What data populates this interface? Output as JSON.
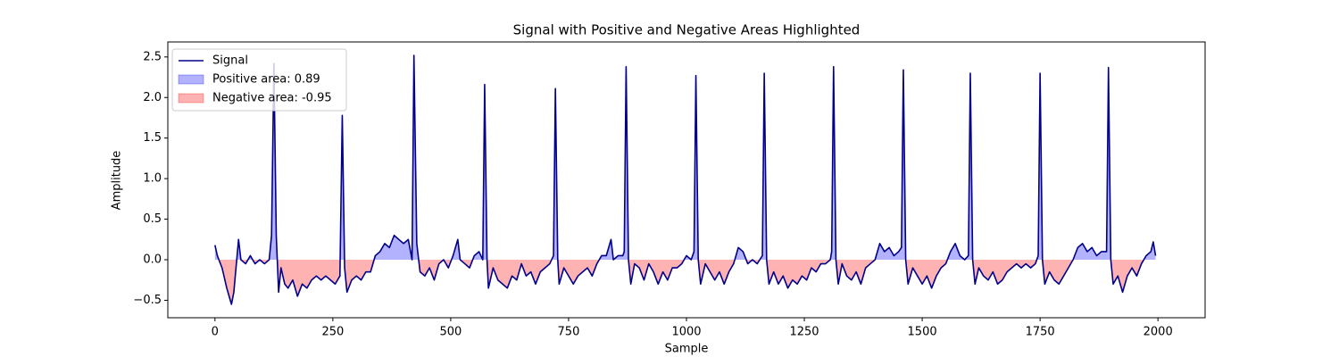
{
  "chart_data": {
    "type": "line",
    "title": "Signal with Positive and Negative Areas Highlighted",
    "x_label": "Sample",
    "y_label": "Amplitude",
    "x": [
      0,
      5,
      15,
      25,
      35,
      40,
      50,
      55,
      65,
      75,
      85,
      95,
      105,
      115,
      120,
      125,
      130,
      135,
      140,
      148,
      155,
      165,
      175,
      185,
      195,
      205,
      215,
      225,
      235,
      245,
      255,
      265,
      270,
      275,
      280,
      290,
      300,
      310,
      320,
      330,
      340,
      350,
      360,
      370,
      380,
      390,
      400,
      410,
      418,
      422,
      428,
      435,
      445,
      455,
      465,
      475,
      485,
      495,
      505,
      515,
      520,
      530,
      540,
      550,
      560,
      568,
      572,
      577,
      580,
      590,
      600,
      610,
      620,
      630,
      640,
      650,
      660,
      670,
      680,
      690,
      700,
      710,
      718,
      722,
      727,
      730,
      740,
      750,
      760,
      770,
      780,
      790,
      800,
      810,
      820,
      830,
      840,
      845,
      855,
      865,
      868,
      872,
      877,
      882,
      890,
      900,
      910,
      920,
      930,
      940,
      950,
      960,
      970,
      980,
      990,
      1000,
      1010,
      1016,
      1020,
      1025,
      1030,
      1040,
      1050,
      1060,
      1070,
      1080,
      1090,
      1100,
      1110,
      1120,
      1130,
      1140,
      1150,
      1161,
      1165,
      1170,
      1175,
      1185,
      1195,
      1205,
      1215,
      1225,
      1235,
      1245,
      1255,
      1265,
      1275,
      1285,
      1295,
      1305,
      1308,
      1312,
      1317,
      1322,
      1330,
      1340,
      1350,
      1360,
      1370,
      1380,
      1390,
      1400,
      1410,
      1420,
      1430,
      1440,
      1450,
      1456,
      1460,
      1465,
      1470,
      1480,
      1490,
      1500,
      1510,
      1520,
      1530,
      1540,
      1550,
      1560,
      1570,
      1580,
      1590,
      1598,
      1602,
      1607,
      1612,
      1620,
      1630,
      1640,
      1650,
      1660,
      1670,
      1680,
      1690,
      1700,
      1710,
      1720,
      1730,
      1740,
      1746,
      1750,
      1755,
      1760,
      1770,
      1780,
      1790,
      1800,
      1810,
      1820,
      1830,
      1840,
      1850,
      1860,
      1870,
      1880,
      1891,
      1895,
      1900,
      1905,
      1915,
      1925,
      1935,
      1945,
      1955,
      1965,
      1975,
      1985,
      1990,
      1995
    ],
    "series": [
      {
        "name": "Signal",
        "color": "#00008b",
        "values": [
          0.18,
          0.05,
          -0.1,
          -0.35,
          -0.55,
          -0.4,
          0.25,
          0.0,
          -0.05,
          0.05,
          -0.05,
          0.0,
          -0.05,
          0.0,
          0.3,
          2.42,
          0.3,
          -0.4,
          -0.1,
          -0.3,
          -0.35,
          -0.25,
          -0.45,
          -0.3,
          -0.35,
          -0.25,
          -0.2,
          -0.25,
          -0.2,
          -0.25,
          -0.3,
          -0.2,
          1.78,
          -0.1,
          -0.4,
          -0.25,
          -0.2,
          -0.25,
          -0.15,
          -0.15,
          0.05,
          0.1,
          0.2,
          0.15,
          0.3,
          0.25,
          0.2,
          0.25,
          0.0,
          2.52,
          0.2,
          -0.15,
          -0.2,
          -0.1,
          -0.25,
          -0.05,
          0.0,
          -0.1,
          0.05,
          0.25,
          0.0,
          -0.05,
          -0.1,
          0.05,
          0.1,
          0.0,
          2.16,
          0.0,
          -0.35,
          -0.1,
          -0.25,
          -0.3,
          -0.35,
          -0.2,
          -0.25,
          -0.05,
          -0.2,
          -0.15,
          -0.3,
          -0.15,
          -0.1,
          -0.05,
          0.05,
          2.11,
          0.0,
          -0.3,
          -0.1,
          -0.2,
          -0.3,
          -0.2,
          -0.15,
          -0.1,
          -0.2,
          -0.05,
          0.05,
          0.05,
          0.25,
          0.0,
          0.05,
          0.05,
          0.1,
          2.38,
          0.0,
          -0.3,
          -0.05,
          -0.1,
          -0.25,
          -0.05,
          -0.15,
          -0.3,
          -0.15,
          -0.25,
          -0.1,
          -0.1,
          -0.05,
          0.05,
          0.0,
          0.1,
          2.27,
          0.0,
          -0.3,
          -0.05,
          -0.15,
          -0.25,
          -0.15,
          -0.3,
          -0.15,
          -0.05,
          0.15,
          0.1,
          -0.05,
          0.0,
          -0.05,
          0.05,
          2.3,
          0.0,
          -0.3,
          -0.15,
          -0.3,
          -0.2,
          -0.35,
          -0.25,
          -0.3,
          -0.2,
          -0.25,
          -0.1,
          -0.15,
          -0.05,
          -0.05,
          0.0,
          0.1,
          2.38,
          0.0,
          -0.3,
          -0.05,
          -0.2,
          -0.25,
          -0.15,
          -0.3,
          -0.1,
          -0.05,
          0.0,
          0.2,
          0.1,
          0.15,
          0.05,
          0.1,
          0.15,
          2.34,
          0.0,
          -0.3,
          -0.1,
          -0.2,
          -0.3,
          -0.2,
          -0.35,
          -0.2,
          -0.1,
          -0.05,
          0.1,
          0.2,
          0.05,
          0.0,
          0.05,
          2.3,
          0.0,
          -0.3,
          -0.1,
          -0.2,
          -0.25,
          -0.15,
          -0.3,
          -0.25,
          -0.15,
          -0.1,
          -0.05,
          -0.1,
          -0.05,
          -0.1,
          -0.05,
          0.05,
          2.3,
          0.0,
          -0.3,
          -0.15,
          -0.25,
          -0.3,
          -0.2,
          -0.1,
          0.0,
          0.15,
          0.2,
          0.1,
          0.15,
          0.05,
          0.1,
          0.1,
          2.37,
          0.0,
          -0.3,
          -0.2,
          -0.4,
          -0.2,
          -0.1,
          -0.2,
          -0.05,
          0.05,
          0.1,
          0.22,
          0.05
        ]
      }
    ],
    "areas": [
      {
        "name": "Positive area: 0.89",
        "color": "#0000ff",
        "sign": "positive"
      },
      {
        "name": "Negative area: -0.95",
        "color": "#ff0000",
        "sign": "negative"
      }
    ],
    "xlim": [
      -100,
      2100
    ],
    "ylim": [
      -0.715,
      2.685
    ],
    "xticks": [
      0,
      250,
      500,
      750,
      1000,
      1250,
      1500,
      1750,
      2000
    ],
    "yticks": [
      {
        "value": -0.5,
        "label": "−0.5"
      },
      {
        "value": 0,
        "label": "0.0"
      },
      0.5,
      {
        "value": 1,
        "label": "1.0"
      },
      1.5,
      {
        "value": 2,
        "label": "2.0"
      },
      2.5
    ],
    "legend": "upper left"
  }
}
